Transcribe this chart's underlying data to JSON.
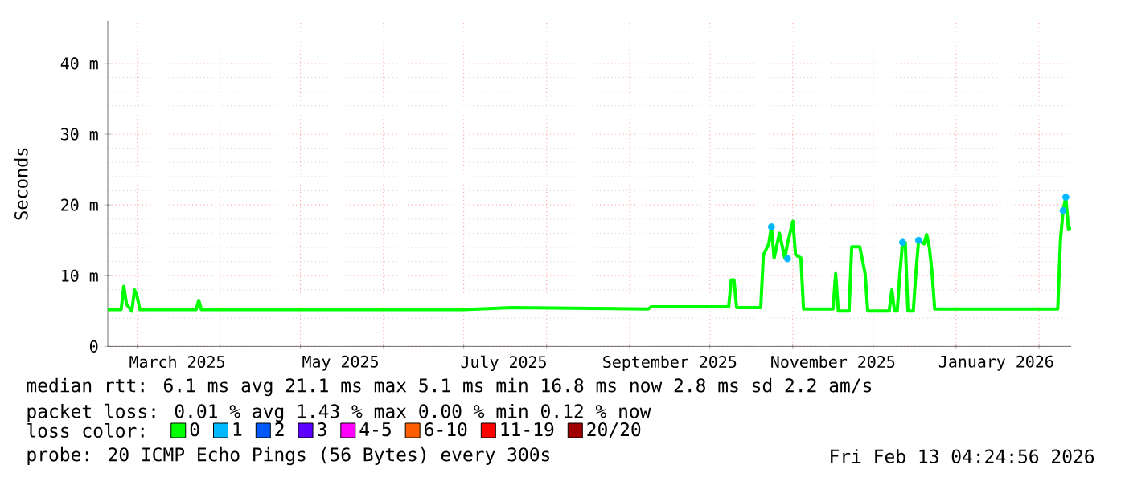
{
  "chart_data": {
    "type": "line",
    "ylabel": "Seconds",
    "legend_title": "loss color:",
    "xlim": [
      "2025-02-18",
      "2026-02-13"
    ],
    "xticks": [
      {
        "value": "2025-03-01",
        "label": null
      },
      {
        "value": "2025-04-01",
        "label": null
      },
      {
        "value": "2025-05-01",
        "label": null
      },
      {
        "value": "2025-06-01",
        "label": null
      },
      {
        "value": "2025-07-01",
        "label": null
      },
      {
        "value": "2025-08-01",
        "label": null
      },
      {
        "value": "2025-09-01",
        "label": null
      },
      {
        "value": "2025-10-01",
        "label": null
      },
      {
        "value": "2025-11-01",
        "label": null
      },
      {
        "value": "2025-12-01",
        "label": null
      },
      {
        "value": "2026-01-01",
        "label": null
      },
      {
        "value": "2026-02-01",
        "label": null
      },
      {
        "value": "2025-03-16",
        "label": "March 2025"
      },
      {
        "value": "2025-05-16",
        "label": "May 2025"
      },
      {
        "value": "2025-07-16",
        "label": "July 2025"
      },
      {
        "value": "2025-09-16",
        "label": "September 2025"
      },
      {
        "value": "2025-11-16",
        "label": "November 2025"
      },
      {
        "value": "2026-01-16",
        "label": "January 2026"
      }
    ],
    "ylim": [
      0,
      46
    ],
    "yticks": [
      0,
      {
        "value": 10,
        "label": "10 m"
      },
      {
        "value": 20,
        "label": "20 m"
      },
      {
        "value": 30,
        "label": "30 m"
      },
      {
        "value": 40,
        "label": "40 m"
      }
    ],
    "grid": true,
    "legend": "bottom",
    "series": [
      {
        "name": "0",
        "color": "#00ff00",
        "x": [
          "2025-02-18",
          "2025-02-23",
          "2025-02-24",
          "2025-02-25",
          "2025-02-27",
          "2025-02-28",
          "2025-03-01",
          "2025-03-02",
          "2025-03-23",
          "2025-03-24",
          "2025-03-25",
          "2025-07-01",
          "2025-07-19",
          "2025-09-08",
          "2025-09-09",
          "2025-10-08",
          "2025-10-09",
          "2025-10-10",
          "2025-10-11",
          "2025-10-20",
          "2025-10-21",
          "2025-10-23",
          "2025-10-24",
          "2025-10-25",
          "2025-10-27",
          "2025-10-29",
          "2025-10-30",
          "2025-11-01",
          "2025-11-02",
          "2025-11-04",
          "2025-11-05",
          "2025-11-16",
          "2025-11-17",
          "2025-11-18",
          "2025-11-22",
          "2025-11-23",
          "2025-11-26",
          "2025-11-28",
          "2025-11-29",
          "2025-12-07",
          "2025-12-08",
          "2025-12-09",
          "2025-12-10",
          "2025-12-11",
          "2025-12-12",
          "2025-12-13",
          "2025-12-14",
          "2025-12-16",
          "2025-12-17",
          "2025-12-18",
          "2025-12-20",
          "2025-12-21",
          "2025-12-22",
          "2025-12-23",
          "2025-12-24",
          "2026-02-08",
          "2026-02-09",
          "2026-02-10",
          "2026-02-11",
          "2026-02-12",
          "2026-02-13"
        ],
        "values": [
          5.2,
          5.2,
          8.5,
          6.0,
          5.0,
          8.0,
          7.0,
          5.2,
          5.2,
          6.5,
          5.2,
          5.2,
          5.5,
          5.3,
          5.6,
          5.6,
          9.4,
          9.4,
          5.5,
          5.5,
          12.9,
          14.5,
          16.9,
          12.5,
          16.0,
          12.5,
          14.5,
          17.7,
          13.0,
          12.5,
          5.3,
          5.3,
          10.3,
          5.0,
          5.0,
          14.1,
          14.1,
          10.3,
          5.0,
          5.0,
          8.0,
          5.0,
          5.0,
          10.3,
          14.7,
          14.7,
          5.0,
          5.0,
          10.5,
          15.0,
          14.5,
          15.8,
          14.0,
          10.5,
          5.3,
          5.3,
          15.0,
          19.2,
          21.1,
          16.5,
          16.8
        ]
      },
      {
        "name": "1",
        "color": "#00b8ff",
        "type": "scatter",
        "marker": "circle",
        "x": [
          "2025-10-24",
          "2025-10-30",
          "2025-12-12",
          "2025-12-18",
          "2026-02-10",
          "2026-02-11"
        ],
        "values": [
          16.9,
          12.4,
          14.7,
          15.0,
          19.2,
          21.1
        ]
      },
      {
        "name": "2",
        "color": "#0059ff",
        "type": "scatter"
      },
      {
        "name": "3",
        "color": "#5e00ff",
        "type": "scatter"
      },
      {
        "name": "4-5",
        "color": "#ff00ff",
        "type": "scatter"
      },
      {
        "name": "6-10",
        "color": "#ff5e00",
        "type": "scatter"
      },
      {
        "name": "11-19",
        "color": "#ff0000",
        "type": "scatter"
      },
      {
        "name": "20/20",
        "color": "#a10000",
        "type": "scatter"
      }
    ],
    "annotations": [
      "median rtt:  6.1 ms avg  21.1 ms max  5.1 ms min  16.8 ms now  2.8 ms sd  2.2   am/s",
      "packet loss: 0.01 % avg  1.43 % max  0.00 % min  0.12 % now",
      "probe:       20 ICMP Echo Pings (56 Bytes) every 300s",
      "Fri Feb 13 04:24:56 2026"
    ]
  }
}
